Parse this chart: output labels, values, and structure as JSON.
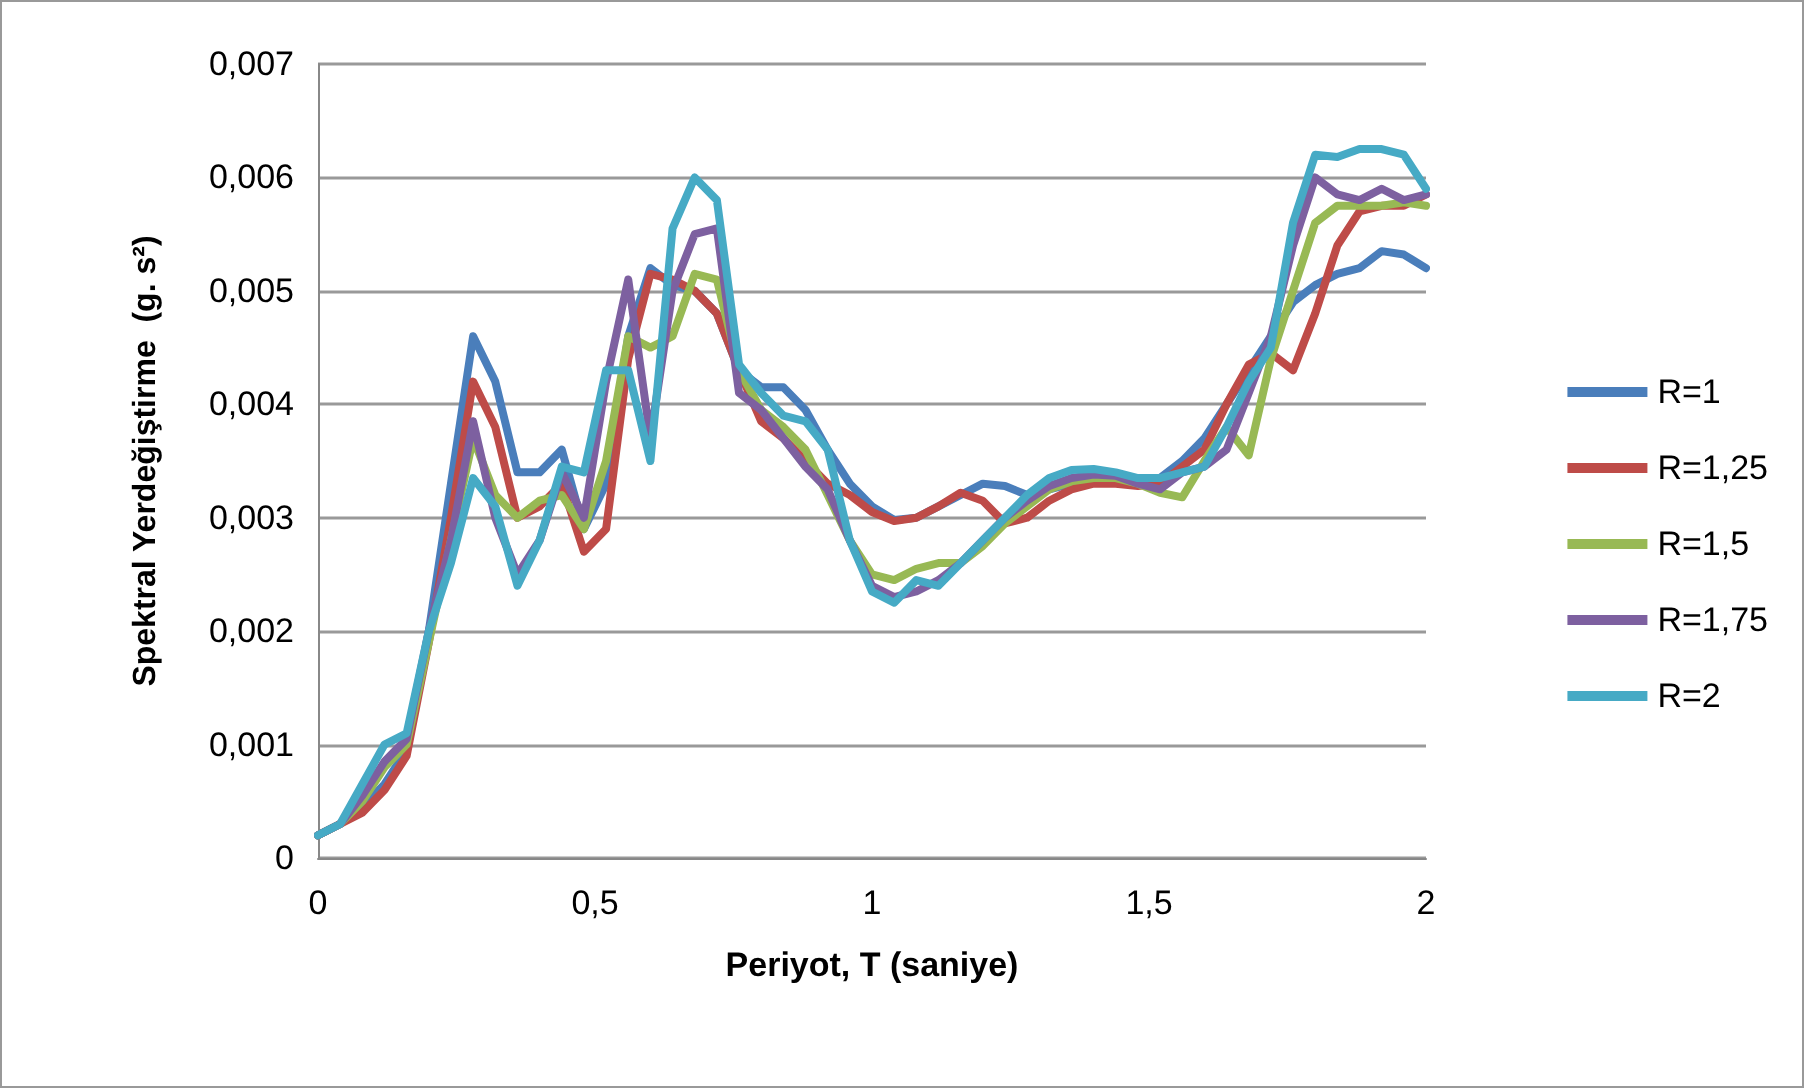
{
  "chart_data": {
    "type": "line",
    "xlabel": "Periyot, T (saniye)",
    "ylabel": "Spektral Yerdeğiştirme  (g. s²)",
    "x": [
      0,
      0.04,
      0.08,
      0.12,
      0.16,
      0.2,
      0.24,
      0.28,
      0.32,
      0.36,
      0.4,
      0.44,
      0.48,
      0.52,
      0.56,
      0.6,
      0.64,
      0.68,
      0.72,
      0.76,
      0.8,
      0.84,
      0.88,
      0.92,
      0.96,
      1,
      1.04,
      1.08,
      1.12,
      1.16,
      1.2,
      1.24,
      1.28,
      1.32,
      1.36,
      1.4,
      1.44,
      1.48,
      1.52,
      1.56,
      1.6,
      1.64,
      1.68,
      1.72,
      1.76,
      1.8,
      1.84,
      1.88,
      1.92,
      1.96,
      2
    ],
    "series": [
      {
        "name": "R=1",
        "color": "#4a7ebb",
        "values": [
          0.0002,
          0.0003,
          0.00045,
          0.00065,
          0.00095,
          0.002,
          0.0033,
          0.0046,
          0.0042,
          0.0034,
          0.0034,
          0.0036,
          0.0029,
          0.0033,
          0.0046,
          0.0052,
          0.00505,
          0.005,
          0.0048,
          0.0043,
          0.00415,
          0.00415,
          0.00395,
          0.0036,
          0.0033,
          0.0031,
          0.00298,
          0.003,
          0.0031,
          0.0032,
          0.0033,
          0.00328,
          0.0032,
          0.00325,
          0.0033,
          0.00333,
          0.00333,
          0.0033,
          0.00335,
          0.0035,
          0.0037,
          0.004,
          0.0043,
          0.0046,
          0.0049,
          0.00505,
          0.00515,
          0.0052,
          0.00535,
          0.00532,
          0.0052
        ]
      },
      {
        "name": "R=1,25",
        "color": "#be4b48",
        "values": [
          0.0002,
          0.0003,
          0.0004,
          0.0006,
          0.0009,
          0.0019,
          0.003,
          0.0042,
          0.0038,
          0.003,
          0.0031,
          0.0033,
          0.0027,
          0.0029,
          0.0044,
          0.00515,
          0.0051,
          0.005,
          0.0048,
          0.0043,
          0.00385,
          0.0037,
          0.0035,
          0.0033,
          0.0032,
          0.00305,
          0.00297,
          0.003,
          0.0031,
          0.00322,
          0.00315,
          0.00295,
          0.003,
          0.00315,
          0.00325,
          0.0033,
          0.0033,
          0.00328,
          0.0033,
          0.00345,
          0.0036,
          0.004,
          0.00435,
          0.00445,
          0.0043,
          0.0048,
          0.0054,
          0.0057,
          0.00575,
          0.00575,
          0.00585
        ]
      },
      {
        "name": "R=1,5",
        "color": "#98b954",
        "values": [
          0.0002,
          0.0003,
          0.0005,
          0.0008,
          0.001,
          0.0019,
          0.0028,
          0.0037,
          0.0032,
          0.003,
          0.00315,
          0.0032,
          0.0029,
          0.0035,
          0.0046,
          0.0045,
          0.0046,
          0.00515,
          0.0051,
          0.0043,
          0.00395,
          0.0038,
          0.0036,
          0.0032,
          0.0028,
          0.0025,
          0.00245,
          0.00255,
          0.0026,
          0.0026,
          0.00275,
          0.00295,
          0.0031,
          0.00325,
          0.00332,
          0.00335,
          0.00335,
          0.0033,
          0.00322,
          0.00318,
          0.0035,
          0.0038,
          0.00355,
          0.0044,
          0.005,
          0.0056,
          0.00575,
          0.00575,
          0.00575,
          0.00578,
          0.00575
        ]
      },
      {
        "name": "R=1,75",
        "color": "#7d60a0",
        "values": [
          0.0002,
          0.0003,
          0.00055,
          0.00085,
          0.00105,
          0.002,
          0.0028,
          0.00385,
          0.003,
          0.0025,
          0.0028,
          0.0034,
          0.003,
          0.0042,
          0.0051,
          0.0037,
          0.005,
          0.0055,
          0.00555,
          0.0041,
          0.00395,
          0.0037,
          0.00345,
          0.00325,
          0.0028,
          0.0024,
          0.0023,
          0.00235,
          0.00245,
          0.0026,
          0.0028,
          0.003,
          0.00315,
          0.00328,
          0.00335,
          0.00338,
          0.00337,
          0.0033,
          0.00325,
          0.0034,
          0.00345,
          0.0036,
          0.0041,
          0.0046,
          0.0054,
          0.006,
          0.00585,
          0.0058,
          0.0059,
          0.0058,
          0.00585
        ]
      },
      {
        "name": "R=2",
        "color": "#46aac5",
        "values": [
          0.0002,
          0.0003,
          0.00065,
          0.001,
          0.0011,
          0.002,
          0.0026,
          0.00335,
          0.0031,
          0.0024,
          0.0028,
          0.00345,
          0.0034,
          0.0043,
          0.0043,
          0.0035,
          0.00555,
          0.006,
          0.0058,
          0.00435,
          0.0041,
          0.0039,
          0.00385,
          0.0036,
          0.0028,
          0.00235,
          0.00225,
          0.00245,
          0.0024,
          0.0026,
          0.0028,
          0.003,
          0.0032,
          0.00335,
          0.00342,
          0.00343,
          0.0034,
          0.00335,
          0.00335,
          0.0034,
          0.00345,
          0.0038,
          0.0042,
          0.0045,
          0.0056,
          0.0062,
          0.00618,
          0.00625,
          0.00625,
          0.0062,
          0.0059
        ]
      }
    ],
    "xlim": [
      0,
      2
    ],
    "xticks": [
      0,
      {
        "value": 0.5,
        "label": "0,5"
      },
      1,
      {
        "value": 1.5,
        "label": "1,5"
      },
      2
    ],
    "ylim": [
      0,
      0.007
    ],
    "yticks": [
      0,
      {
        "value": 0.001,
        "label": "0,001"
      },
      {
        "value": 0.002,
        "label": "0,002"
      },
      {
        "value": 0.003,
        "label": "0,003"
      },
      {
        "value": 0.004,
        "label": "0,004"
      },
      {
        "value": 0.005,
        "label": "0,005"
      },
      {
        "value": 0.006,
        "label": "0,006"
      },
      {
        "value": 0.007,
        "label": "0,007"
      }
    ],
    "grid": "y",
    "legend": "right",
    "marker": "none",
    "line_style": "solid"
  }
}
